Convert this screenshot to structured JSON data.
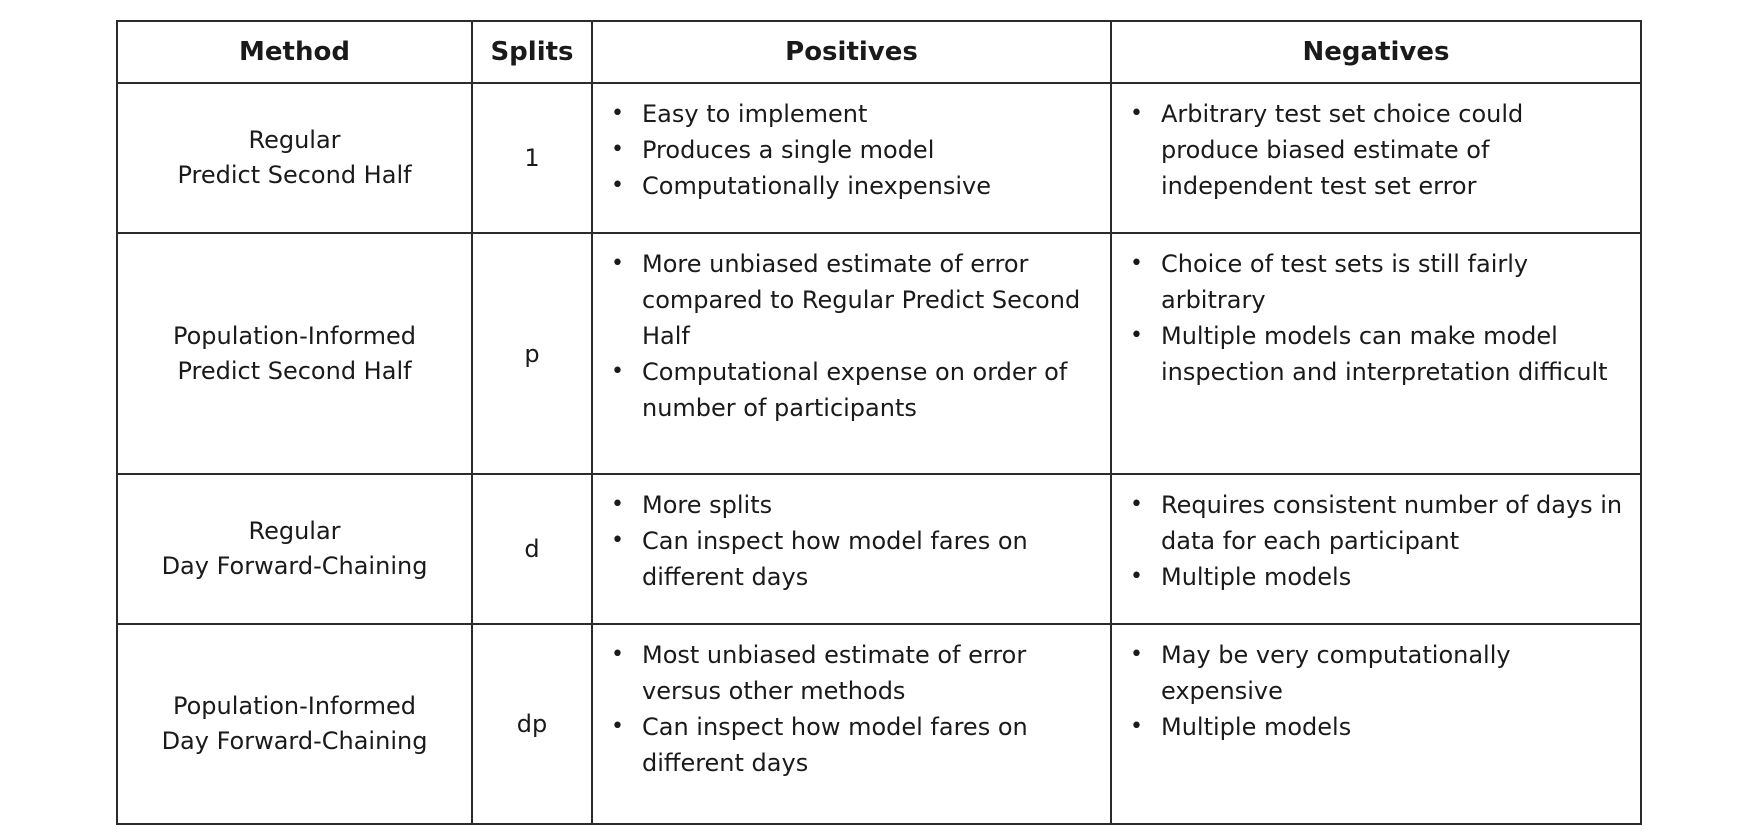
{
  "headers": {
    "method": "Method",
    "splits": "Splits",
    "positives": "Positives",
    "negatives": "Negatives"
  },
  "rows": [
    {
      "method_line1": "Regular",
      "method_line2": "Predict Second Half",
      "splits": "1",
      "positives": [
        "Easy to implement",
        "Produces a single model",
        "Computationally inexpensive"
      ],
      "negatives": [
        "Arbitrary test set choice could produce biased estimate of independent test set error"
      ]
    },
    {
      "method_line1": "Population-Informed",
      "method_line2": "Predict Second Half",
      "splits": "p",
      "positives": [
        "More unbiased estimate of error compared to Regular Predict Second Half",
        "Computational expense on order of number of participants"
      ],
      "negatives": [
        "Choice of test sets is still fairly arbitrary",
        "Multiple models can make model inspection and interpretation difficult"
      ]
    },
    {
      "method_line1": "Regular",
      "method_line2": "Day Forward-Chaining",
      "splits": "d",
      "positives": [
        "More splits",
        "Can inspect how model fares on different days"
      ],
      "negatives": [
        "Requires consistent number of days in data for each participant",
        "Multiple models"
      ]
    },
    {
      "method_line1": "Population-Informed",
      "method_line2": "Day Forward-Chaining",
      "splits": "dp",
      "positives": [
        "Most unbiased estimate of error versus other methods",
        "Can inspect how model fares on different days"
      ],
      "negatives": [
        "May be very computationally expensive",
        "Multiple models"
      ]
    }
  ]
}
